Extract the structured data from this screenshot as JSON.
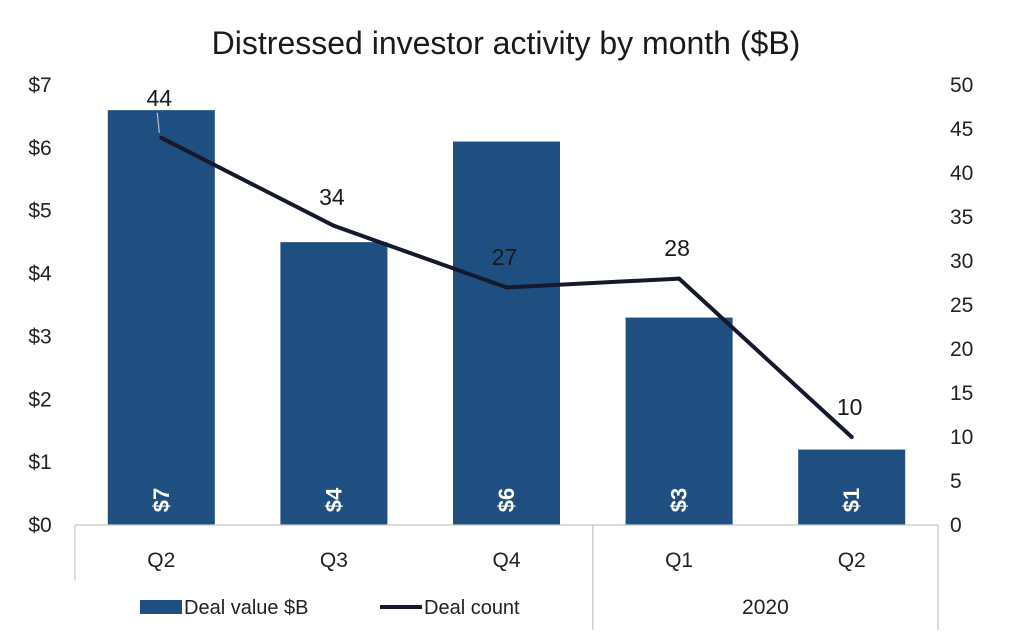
{
  "chart_data": {
    "type": "bar",
    "title": "Distressed investor activity by month ($B)",
    "categories": [
      "Q2",
      "Q3",
      "Q4",
      "Q1",
      "Q2"
    ],
    "group_labels": [
      {
        "label": "",
        "start": 0,
        "end": 2
      },
      {
        "label": "2020",
        "start": 3,
        "end": 4
      }
    ],
    "series": [
      {
        "name": "Deal value $B",
        "type": "bar",
        "axis": "left",
        "color": "#1f4e80",
        "values": [
          6.6,
          4.5,
          6.1,
          3.3,
          1.2
        ],
        "data_labels": [
          "$7",
          "$4",
          "$6",
          "$3",
          "$1"
        ]
      },
      {
        "name": "Deal count",
        "type": "line",
        "axis": "right",
        "color": "#14192b",
        "values": [
          44,
          34,
          27,
          28,
          10
        ],
        "data_labels": [
          "44",
          "34",
          "27",
          "28",
          "10"
        ]
      }
    ],
    "y_left": {
      "min": 0,
      "max": 7,
      "ticks": [
        "$0",
        "$1",
        "$2",
        "$3",
        "$4",
        "$5",
        "$6",
        "$7"
      ]
    },
    "y_right": {
      "min": 0,
      "max": 50,
      "ticks": [
        "0",
        "5",
        "10",
        "15",
        "20",
        "25",
        "30",
        "35",
        "40",
        "45",
        "50"
      ]
    },
    "legend_position": "bottom-left",
    "grid": false
  }
}
